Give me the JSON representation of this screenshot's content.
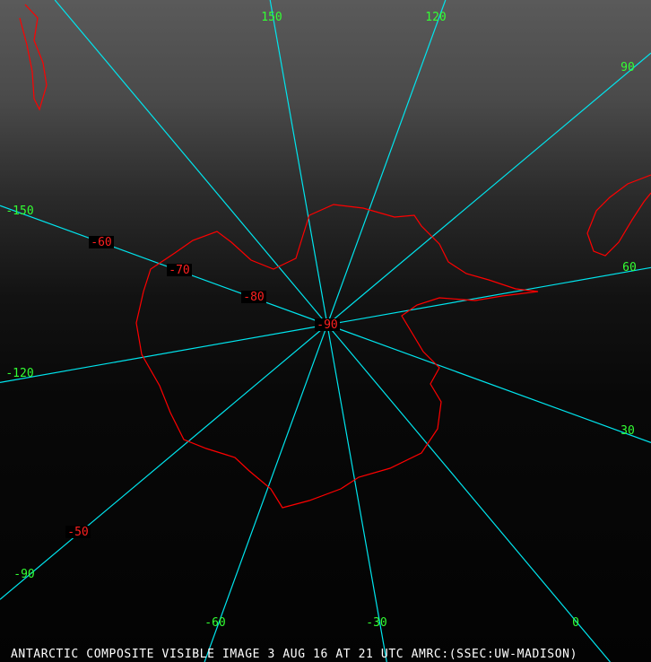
{
  "caption": "ANTARCTIC COMPOSITE VISIBLE IMAGE 3 AUG 16 AT 21 UTC AMRC:(SSEC:UW-MADISON)",
  "colors": {
    "grid": "#00e5ee",
    "longitude_labels": "#33ff33",
    "latitude_labels": "#ff2020",
    "coastline": "#ff0000",
    "background": "#000000"
  },
  "longitude_labels": [
    "150",
    "120",
    "90",
    "60",
    "30",
    "0",
    "-30",
    "-60",
    "-90",
    "-120",
    "-150"
  ],
  "latitude_labels": [
    "-50",
    "-60",
    "-70",
    "-80",
    "-90"
  ],
  "projection": "south-polar-stereographic"
}
